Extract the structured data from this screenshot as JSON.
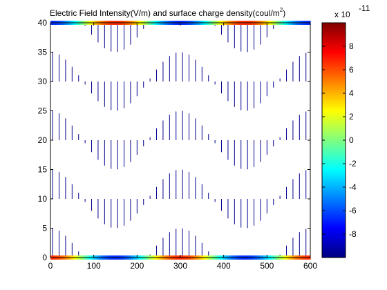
{
  "chart_data": {
    "type": "quiver",
    "title": {
      "main": "Electric Field Intensity(V/m) and surface charge density(coul/m",
      "superscript": "2",
      "closing": ")"
    },
    "xlabel": "",
    "ylabel": "",
    "xlim": [
      0,
      600
    ],
    "ylim": [
      0,
      40
    ],
    "x_ticks": [
      "0",
      "100",
      "200",
      "300",
      "400",
      "500",
      "600"
    ],
    "y_ticks": [
      "0",
      "5",
      "10",
      "15",
      "20",
      "25",
      "30",
      "35",
      "40"
    ],
    "grid": false,
    "field": {
      "columns_x": [
        5,
        20,
        35,
        50,
        65,
        80,
        95,
        110,
        125,
        140,
        155,
        170,
        185,
        200,
        215,
        230,
        245,
        260,
        275,
        290,
        305,
        320,
        335,
        350,
        365,
        380,
        395,
        410,
        425,
        440,
        455,
        470,
        485,
        500,
        515,
        530,
        545,
        560,
        575,
        590
      ],
      "row_bases_y": [
        0,
        10,
        20,
        30,
        40
      ],
      "amplitude": 5,
      "period": 300,
      "phase_x": 0
    },
    "surface_charge": {
      "plates_y": [
        0,
        40
      ],
      "x_range": [
        0,
        600
      ],
      "period": 300
    },
    "colorbar": {
      "exponent_label": "x 10",
      "exponent": "-11",
      "ticks": [
        "8",
        "6",
        "4",
        "2",
        "0",
        "-2",
        "-4",
        "-6",
        "-8"
      ],
      "range": [
        -10,
        10
      ],
      "colormap": "jet"
    },
    "colors": {
      "arrow": "#00008f",
      "axes": "#000000",
      "background": "#ffffff"
    }
  }
}
